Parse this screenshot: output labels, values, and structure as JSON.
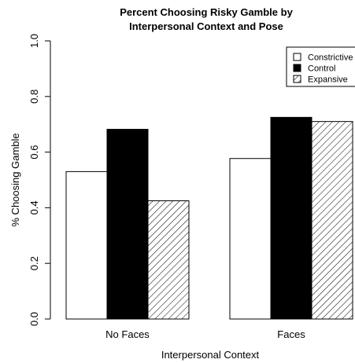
{
  "chart_data": {
    "type": "bar",
    "title_line1": "Percent Choosing Risky Gamble by",
    "title_line2": "Interpersonal Context and Pose",
    "xlabel": "Interpersonal Context",
    "ylabel": "% Choosing Gamble",
    "categories": [
      "No Faces",
      "Faces"
    ],
    "series": [
      {
        "name": "Constrictive",
        "fill": "white",
        "values": [
          0.53,
          0.577
        ]
      },
      {
        "name": "Control",
        "fill": "black",
        "values": [
          0.682,
          0.725
        ]
      },
      {
        "name": "Expansive",
        "fill": "hatch",
        "values": [
          0.425,
          0.71
        ]
      }
    ],
    "ylim": [
      0,
      1.0
    ],
    "yticks": [
      "0.0",
      "0.2",
      "0.4",
      "0.6",
      "0.8",
      "1.0"
    ],
    "grid": false,
    "legend_position": "top-right"
  }
}
